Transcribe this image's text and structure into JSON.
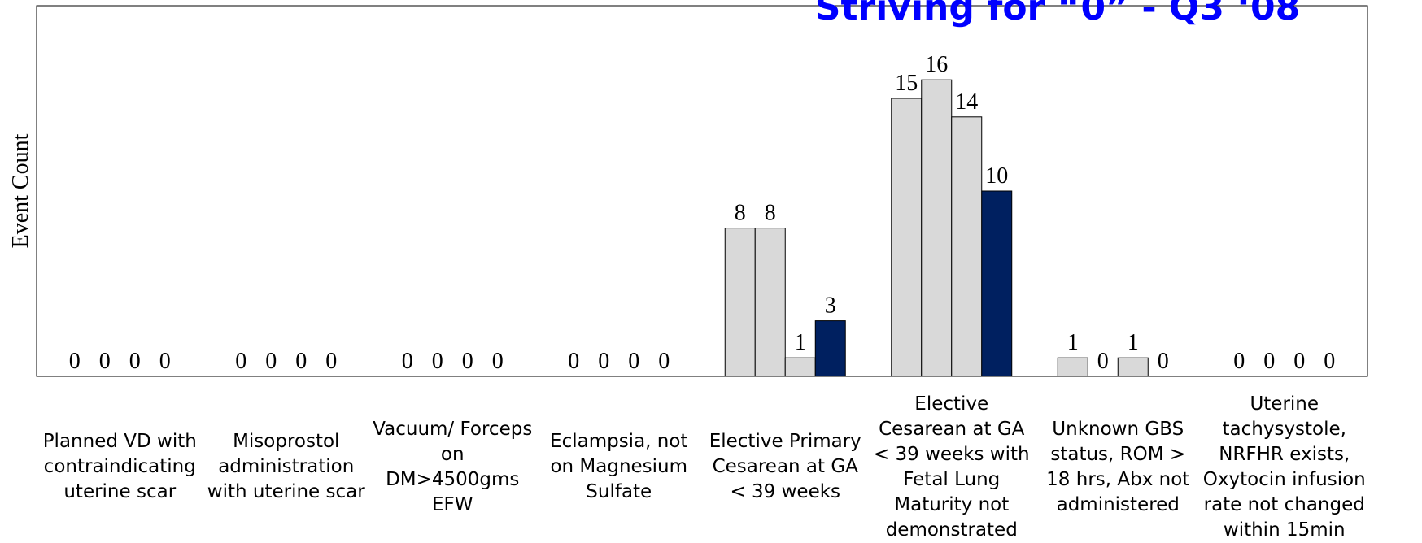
{
  "chart_data": {
    "type": "bar",
    "title": "Striving for “0” - Q3 ‘08",
    "y_label": "Event Count",
    "categories": [
      "Planned VD with contraindicating uterine scar",
      "Misoprostol administration with uterine scar",
      "Vacuum/ Forceps on DM>4500gms EFW",
      "Eclampsia, not on Magnesium Sulfate",
      "Elective Primary Cesarean at GA < 39 weeks",
      "Elective Cesarean at GA < 39 weeks with Fetal Lung Maturity not demonstrated",
      "Unknown GBS status, ROM > 18 hrs, Abx not administered",
      "Uterine tachysystole, NRFHR exists, Oxytocin infusion rate not changed within 15min"
    ],
    "series": [
      {
        "color": "#d9d9d9",
        "values": [
          0,
          0,
          0,
          0,
          8,
          15,
          1,
          0
        ]
      },
      {
        "color": "#d9d9d9",
        "values": [
          0,
          0,
          0,
          0,
          8,
          16,
          0,
          0
        ]
      },
      {
        "color": "#d9d9d9",
        "values": [
          0,
          0,
          0,
          0,
          1,
          14,
          1,
          0
        ]
      },
      {
        "color": "#002060",
        "values": [
          0,
          0,
          0,
          0,
          3,
          10,
          0,
          0
        ]
      }
    ],
    "ylim": [
      0,
      20
    ],
    "title_color": "#0000ff"
  }
}
